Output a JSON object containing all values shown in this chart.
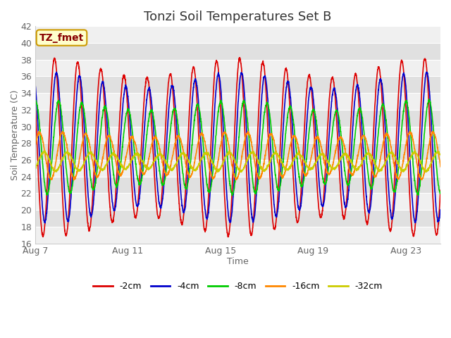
{
  "title": "Tonzi Soil Temperatures Set B",
  "xlabel": "Time",
  "ylabel": "Soil Temperature (C)",
  "ylim": [
    16,
    42
  ],
  "yticks": [
    16,
    18,
    20,
    22,
    24,
    26,
    28,
    30,
    32,
    34,
    36,
    38,
    40,
    42
  ],
  "xtick_labels": [
    "Aug 7",
    "Aug 11",
    "Aug 15",
    "Aug 19",
    "Aug 23"
  ],
  "xtick_days": [
    0,
    4,
    8,
    12,
    16
  ],
  "annotation": "TZ_fmet",
  "series": [
    {
      "label": "-2cm",
      "color": "#dd0000",
      "amp": 9.5,
      "mean": 27.5,
      "phase": 0.0,
      "amp_decay": 0.0
    },
    {
      "label": "-4cm",
      "color": "#0000cc",
      "amp": 8.0,
      "mean": 27.5,
      "phase": 0.08,
      "amp_decay": 0.0
    },
    {
      "label": "-8cm",
      "color": "#00cc00",
      "amp": 5.0,
      "mean": 27.5,
      "phase": 0.18,
      "amp_decay": 0.0
    },
    {
      "label": "-16cm",
      "color": "#ff8800",
      "amp": 2.5,
      "mean": 26.5,
      "phase": 0.35,
      "amp_decay": 0.0
    },
    {
      "label": "-32cm",
      "color": "#cccc00",
      "amp": 1.0,
      "mean": 25.8,
      "phase": 0.55,
      "amp_decay": 0.0
    }
  ],
  "bg_bands": [
    [
      40,
      42,
      "#f0f0f0"
    ],
    [
      38,
      40,
      "#e0e0e0"
    ],
    [
      36,
      38,
      "#f0f0f0"
    ],
    [
      34,
      36,
      "#e0e0e0"
    ],
    [
      32,
      34,
      "#f0f0f0"
    ],
    [
      30,
      32,
      "#e0e0e0"
    ],
    [
      28,
      30,
      "#f0f0f0"
    ],
    [
      26,
      28,
      "#e0e0e0"
    ],
    [
      24,
      26,
      "#f0f0f0"
    ],
    [
      22,
      24,
      "#e0e0e0"
    ],
    [
      20,
      22,
      "#f0f0f0"
    ],
    [
      18,
      20,
      "#e0e0e0"
    ],
    [
      16,
      18,
      "#f0f0f0"
    ]
  ],
  "total_days": 17.5,
  "points_per_day": 144,
  "line_width": 1.2,
  "title_fontsize": 13,
  "axis_fontsize": 9,
  "tick_fontsize": 9,
  "legend_fontsize": 9
}
